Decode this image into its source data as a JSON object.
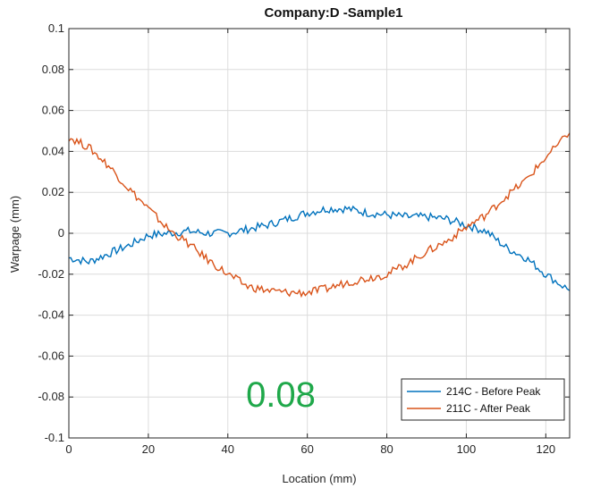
{
  "chart_data": {
    "type": "line",
    "title": "Company:D -Sample1",
    "xlabel": "Location (mm)",
    "ylabel": "Warpage (mm)",
    "xlim": [
      0,
      126
    ],
    "ylim": [
      -0.1,
      0.1
    ],
    "x_ticks": [
      "0",
      "20",
      "40",
      "60",
      "80",
      "100",
      "120"
    ],
    "y_ticks": [
      "0.1",
      "0.08",
      "0.06",
      "0.04",
      "0.02",
      "0",
      "-0.02",
      "-0.04",
      "-0.06",
      "-0.08",
      "-0.1"
    ],
    "grid": true,
    "legend_position": "bottom-right",
    "annotation": {
      "text": "0.08",
      "color": "#1fa84a"
    },
    "series": [
      {
        "name": "214C - Before Peak",
        "color": "#0072bd",
        "x": [
          0,
          5,
          10,
          15,
          20,
          25,
          30,
          35,
          40,
          45,
          50,
          55,
          60,
          65,
          70,
          75,
          80,
          85,
          90,
          95,
          100,
          105,
          110,
          115,
          120,
          126
        ],
        "y": [
          -0.012,
          -0.014,
          -0.01,
          -0.006,
          -0.001,
          0.0,
          0.001,
          0.0,
          0.0,
          0.002,
          0.004,
          0.007,
          0.01,
          0.012,
          0.012,
          0.01,
          0.009,
          0.008,
          0.008,
          0.007,
          0.004,
          0.001,
          -0.007,
          -0.012,
          -0.02,
          -0.028
        ]
      },
      {
        "name": "211C - After Peak",
        "color": "#d95319",
        "x": [
          0,
          5,
          10,
          15,
          20,
          25,
          30,
          35,
          40,
          45,
          50,
          55,
          60,
          65,
          70,
          75,
          80,
          85,
          90,
          95,
          100,
          105,
          110,
          115,
          120,
          126
        ],
        "y": [
          0.047,
          0.042,
          0.033,
          0.022,
          0.012,
          0.002,
          -0.005,
          -0.013,
          -0.02,
          -0.026,
          -0.028,
          -0.029,
          -0.029,
          -0.027,
          -0.024,
          -0.022,
          -0.02,
          -0.015,
          -0.009,
          -0.004,
          0.003,
          0.009,
          0.018,
          0.026,
          0.037,
          0.049
        ]
      }
    ]
  }
}
